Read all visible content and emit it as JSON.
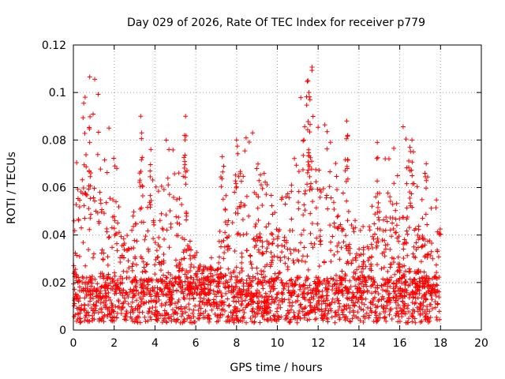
{
  "chart_data": {
    "type": "scatter",
    "title": "Day 029 of 2026, Rate Of TEC Index for receiver p779",
    "xlabel": "GPS time / hours",
    "ylabel": "ROTI / TECUs",
    "xlim": [
      0,
      20
    ],
    "ylim": [
      0,
      0.12
    ],
    "x_ticks": [
      "0",
      "2",
      "4",
      "6",
      "8",
      "10",
      "12",
      "14",
      "16",
      "18",
      "20"
    ],
    "y_ticks": [
      "0",
      "0.02",
      "0.04",
      "0.06",
      "0.08",
      "0.1",
      "0.12"
    ],
    "grid": true,
    "marker": "+",
    "series": [
      {
        "name": "ROTI",
        "color": "#ff0000",
        "x_range": [
          0,
          18
        ],
        "baseline_typical": 0.015,
        "body_upper_typical": 0.045,
        "notable_points": [
          {
            "x": 0.8,
            "y": 0.079
          },
          {
            "x": 3.3,
            "y": 0.09
          },
          {
            "x": 3.35,
            "y": 0.083
          },
          {
            "x": 3.8,
            "y": 0.076
          },
          {
            "x": 5.5,
            "y": 0.09
          },
          {
            "x": 5.45,
            "y": 0.082
          },
          {
            "x": 7.3,
            "y": 0.073
          },
          {
            "x": 8.0,
            "y": 0.08
          },
          {
            "x": 11.5,
            "y": 0.105
          },
          {
            "x": 11.55,
            "y": 0.1
          },
          {
            "x": 11.6,
            "y": 0.097
          },
          {
            "x": 11.3,
            "y": 0.08
          },
          {
            "x": 13.4,
            "y": 0.088
          },
          {
            "x": 13.45,
            "y": 0.082
          },
          {
            "x": 14.9,
            "y": 0.079
          },
          {
            "x": 16.6,
            "y": 0.08
          },
          {
            "x": 16.5,
            "y": 0.077
          },
          {
            "x": 17.3,
            "y": 0.07
          }
        ]
      }
    ]
  }
}
